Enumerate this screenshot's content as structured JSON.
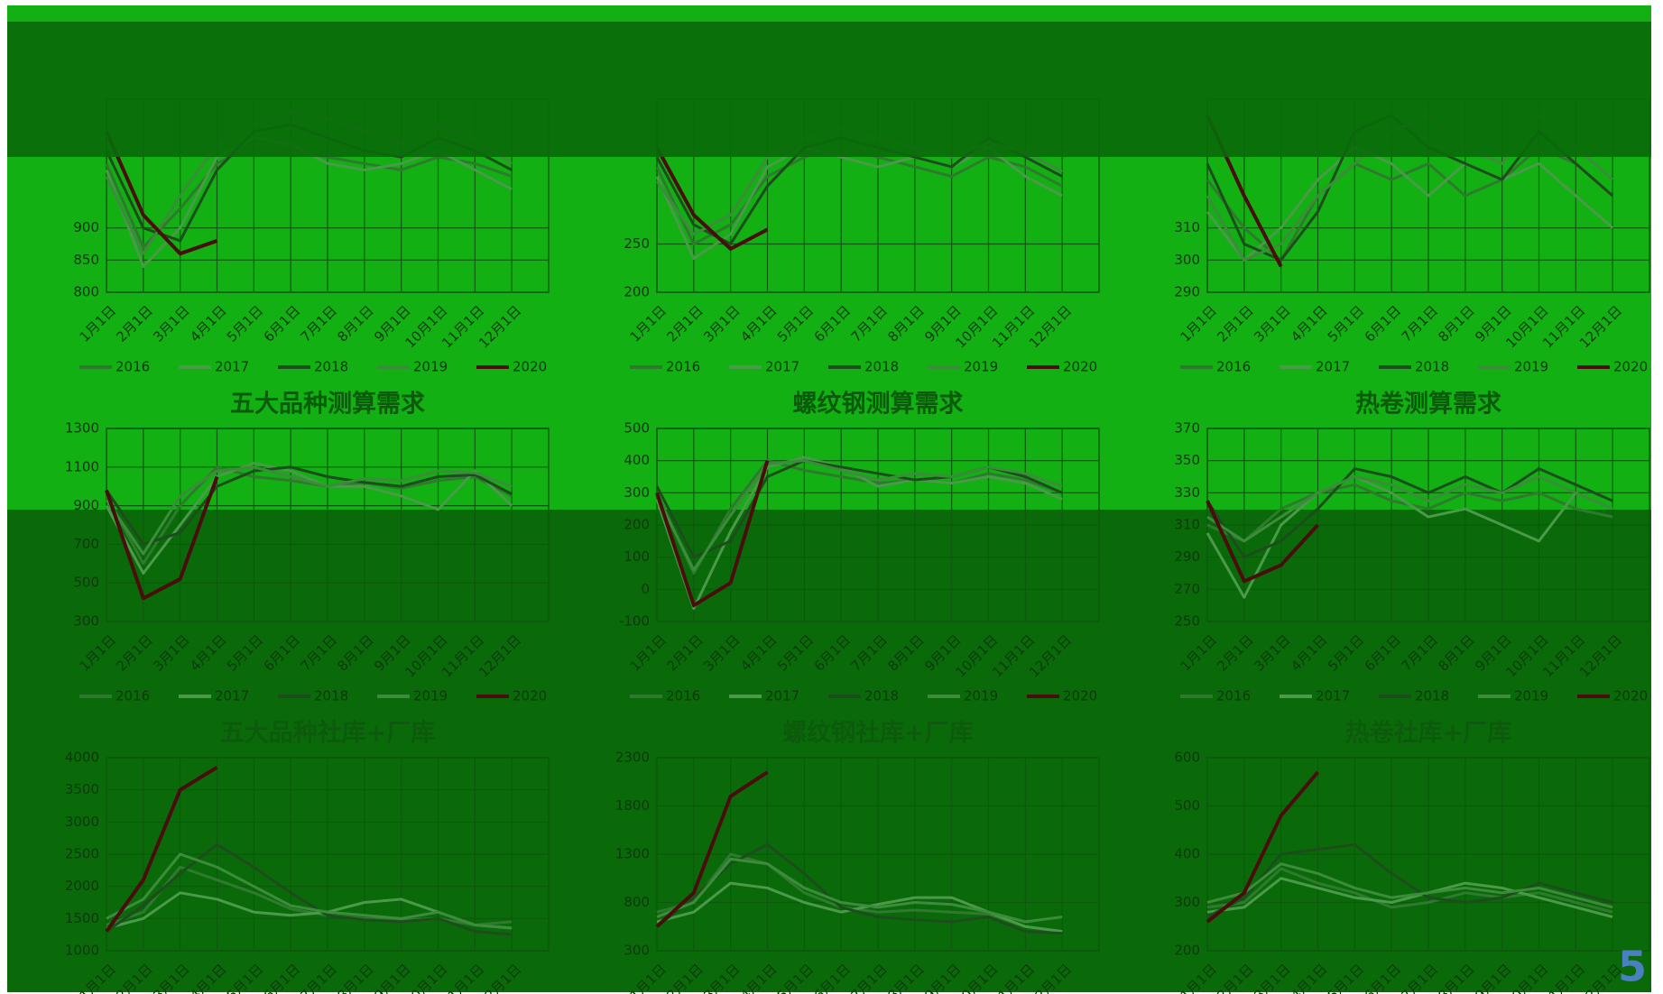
{
  "page_number": "5",
  "chart_data": [
    {
      "type": "line",
      "categories": [
        "1月1日",
        "2月1日",
        "3月1日",
        "4月1日",
        "5月1日",
        "6月1日",
        "7月1日",
        "8月1日",
        "9月1日",
        "10月1日",
        "11月1日",
        "12月1日"
      ],
      "ylim": [
        800,
        1100
      ],
      "yticks": [
        800,
        850,
        900
      ],
      "grid": true,
      "series": [
        {
          "name": "2016",
          "color": "#2f7a2f",
          "values": [
            1000,
            870,
            930,
            1000,
            1030,
            1020,
            1010,
            1000,
            990,
            1010,
            1000,
            980
          ]
        },
        {
          "name": "2017",
          "color": "#4a9a4a",
          "values": [
            990,
            840,
            900,
            1010,
            1040,
            1030,
            1000,
            990,
            1000,
            1020,
            990,
            960
          ]
        },
        {
          "name": "2018",
          "color": "#1d4d1d",
          "values": [
            1020,
            900,
            880,
            990,
            1050,
            1060,
            1040,
            1020,
            1010,
            1040,
            1020,
            990
          ]
        },
        {
          "name": "2019",
          "color": "#3c8c3c",
          "values": [
            980,
            860,
            950,
            1030,
            1060,
            1080,
            1070,
            1050,
            1030,
            1060,
            1040,
            1000
          ]
        },
        {
          "name": "2020",
          "color": "#4a0d0d",
          "values": [
            1050,
            920,
            860,
            880,
            null,
            null,
            null,
            null,
            null,
            null,
            null,
            null
          ]
        }
      ]
    },
    {
      "type": "line",
      "categories": [
        "1月1日",
        "2月1日",
        "3月1日",
        "4月1日",
        "5月1日",
        "6月1日",
        "7月1日",
        "8月1日",
        "9月1日",
        "10月1日",
        "11月1日",
        "12月1日"
      ],
      "ylim": [
        200,
        400
      ],
      "yticks": [
        200,
        250
      ],
      "grid": true,
      "series": [
        {
          "name": "2016",
          "color": "#2f7a2f",
          "values": [
            330,
            250,
            270,
            320,
            340,
            350,
            340,
            330,
            320,
            340,
            330,
            310
          ]
        },
        {
          "name": "2017",
          "color": "#4a9a4a",
          "values": [
            320,
            235,
            260,
            330,
            350,
            340,
            330,
            340,
            330,
            350,
            320,
            300
          ]
        },
        {
          "name": "2018",
          "color": "#1d4d1d",
          "values": [
            340,
            270,
            250,
            310,
            350,
            360,
            350,
            340,
            330,
            360,
            340,
            320
          ]
        },
        {
          "name": "2019",
          "color": "#3c8c3c",
          "values": [
            315,
            260,
            280,
            340,
            360,
            370,
            360,
            350,
            340,
            355,
            345,
            325
          ]
        },
        {
          "name": "2020",
          "color": "#4a0d0d",
          "values": [
            350,
            280,
            245,
            265,
            null,
            null,
            null,
            null,
            null,
            null,
            null,
            null
          ]
        }
      ]
    },
    {
      "type": "line",
      "categories": [
        "1月1日",
        "2月1日",
        "3月1日",
        "4月1日",
        "5月1日",
        "6月1日",
        "7月1日",
        "8月1日",
        "9月1日",
        "10月1日",
        "11月1日",
        "12月1日"
      ],
      "ylim": [
        290,
        350
      ],
      "yticks": [
        290,
        300,
        310
      ],
      "grid": true,
      "series": [
        {
          "name": "2016",
          "color": "#2f7a2f",
          "values": [
            325,
            310,
            300,
            320,
            330,
            325,
            330,
            320,
            325,
            335,
            330,
            320
          ]
        },
        {
          "name": "2017",
          "color": "#4a9a4a",
          "values": [
            315,
            300,
            310,
            325,
            335,
            330,
            320,
            330,
            325,
            330,
            320,
            310
          ]
        },
        {
          "name": "2018",
          "color": "#1d4d1d",
          "values": [
            330,
            305,
            300,
            315,
            340,
            345,
            335,
            330,
            325,
            340,
            330,
            320
          ]
        },
        {
          "name": "2019",
          "color": "#3c8c3c",
          "values": [
            320,
            300,
            305,
            320,
            330,
            340,
            345,
            335,
            330,
            345,
            335,
            325
          ]
        },
        {
          "name": "2020",
          "color": "#4a0d0d",
          "values": [
            345,
            320,
            298,
            null,
            null,
            null,
            null,
            null,
            null,
            null,
            null,
            null
          ]
        }
      ]
    },
    {
      "type": "line",
      "title": "五大品种测算需求",
      "categories": [
        "1月1日",
        "2月1日",
        "3月1日",
        "4月1日",
        "5月1日",
        "6月1日",
        "7月1日",
        "8月1日",
        "9月1日",
        "10月1日",
        "11月1日",
        "12月1日"
      ],
      "ylim": [
        300,
        1300
      ],
      "yticks": [
        300,
        500,
        700,
        900,
        1100,
        1300
      ],
      "grid": true,
      "series": [
        {
          "name": "2016",
          "color": "#2f7a2f",
          "values": [
            950,
            600,
            900,
            1100,
            1050,
            1030,
            1000,
            1020,
            990,
            1030,
            1050,
            950
          ]
        },
        {
          "name": "2017",
          "color": "#4a9a4a",
          "values": [
            900,
            550,
            800,
            1050,
            1120,
            1080,
            1000,
            1000,
            950,
            880,
            1080,
            900
          ]
        },
        {
          "name": "2018",
          "color": "#1d4d1d",
          "values": [
            980,
            700,
            760,
            1000,
            1080,
            1100,
            1050,
            1020,
            1000,
            1050,
            1060,
            960
          ]
        },
        {
          "name": "2019",
          "color": "#3c8c3c",
          "values": [
            930,
            650,
            950,
            1080,
            1100,
            1050,
            1000,
            1040,
            1030,
            1080,
            1070,
            1000
          ]
        },
        {
          "name": "2020",
          "color": "#4a0d0d",
          "values": [
            980,
            420,
            520,
            1050,
            null,
            null,
            null,
            null,
            null,
            null,
            null,
            null
          ]
        }
      ]
    },
    {
      "type": "line",
      "title": "螺纹钢测算需求",
      "categories": [
        "1月1日",
        "2月1日",
        "3月1日",
        "4月1日",
        "5月1日",
        "6月1日",
        "7月1日",
        "8月1日",
        "9月1日",
        "10月1日",
        "11月1日",
        "12月1日"
      ],
      "ylim": [
        -100,
        500
      ],
      "yticks": [
        -100,
        0,
        100,
        200,
        300,
        400,
        500
      ],
      "grid": true,
      "series": [
        {
          "name": "2016",
          "color": "#2f7a2f",
          "values": [
            300,
            50,
            250,
            400,
            370,
            350,
            330,
            340,
            330,
            360,
            340,
            300
          ]
        },
        {
          "name": "2017",
          "color": "#4a9a4a",
          "values": [
            280,
            -60,
            180,
            380,
            410,
            380,
            320,
            340,
            330,
            350,
            330,
            280
          ]
        },
        {
          "name": "2018",
          "color": "#1d4d1d",
          "values": [
            320,
            100,
            150,
            350,
            400,
            380,
            360,
            340,
            350,
            380,
            350,
            300
          ]
        },
        {
          "name": "2019",
          "color": "#3c8c3c",
          "values": [
            290,
            60,
            230,
            390,
            400,
            370,
            340,
            360,
            350,
            380,
            360,
            320
          ]
        },
        {
          "name": "2020",
          "color": "#4a0d0d",
          "values": [
            300,
            -50,
            20,
            400,
            null,
            null,
            null,
            null,
            null,
            null,
            null,
            null
          ]
        }
      ]
    },
    {
      "type": "line",
      "title": "热卷测算需求",
      "categories": [
        "1月1日",
        "2月1日",
        "3月1日",
        "4月1日",
        "5月1日",
        "6月1日",
        "7月1日",
        "8月1日",
        "9月1日",
        "10月1日",
        "11月1日",
        "12月1日"
      ],
      "ylim": [
        250,
        370
      ],
      "yticks": [
        250,
        270,
        290,
        310,
        330,
        350,
        370
      ],
      "grid": true,
      "series": [
        {
          "name": "2016",
          "color": "#2f7a2f",
          "values": [
            310,
            300,
            320,
            330,
            335,
            325,
            320,
            330,
            325,
            330,
            320,
            315
          ]
        },
        {
          "name": "2017",
          "color": "#4a9a4a",
          "values": [
            305,
            265,
            310,
            330,
            340,
            330,
            315,
            320,
            310,
            300,
            330,
            320
          ]
        },
        {
          "name": "2018",
          "color": "#1d4d1d",
          "values": [
            325,
            290,
            300,
            320,
            345,
            340,
            330,
            340,
            330,
            345,
            335,
            325
          ]
        },
        {
          "name": "2019",
          "color": "#3c8c3c",
          "values": [
            315,
            300,
            315,
            330,
            340,
            335,
            325,
            335,
            330,
            340,
            330,
            320
          ]
        },
        {
          "name": "2020",
          "color": "#4a0d0d",
          "values": [
            325,
            275,
            285,
            310,
            null,
            null,
            null,
            null,
            null,
            null,
            null,
            null
          ]
        }
      ]
    },
    {
      "type": "line",
      "title": "五大品种社库+厂库",
      "categories": [
        "1月1日",
        "2月1日",
        "3月1日",
        "4月1日",
        "5月1日",
        "6月1日",
        "7月1日",
        "8月1日",
        "9月1日",
        "10月1日",
        "11月1日",
        "12月1日"
      ],
      "ylim": [
        1000,
        4000
      ],
      "yticks": [
        1000,
        1500,
        2000,
        2500,
        3000,
        3500,
        4000
      ],
      "grid": true,
      "series": [
        {
          "name": "2016",
          "color": "#2f7a2f",
          "values": [
            1400,
            1600,
            2300,
            2100,
            1900,
            1650,
            1550,
            1500,
            1480,
            1500,
            1400,
            1450
          ]
        },
        {
          "name": "2017",
          "color": "#4a9a4a",
          "values": [
            1350,
            1500,
            1900,
            1800,
            1600,
            1550,
            1600,
            1750,
            1800,
            1600,
            1400,
            1350
          ]
        },
        {
          "name": "2018",
          "color": "#1d4d1d",
          "values": [
            1300,
            1700,
            2200,
            2650,
            2300,
            1900,
            1550,
            1480,
            1450,
            1500,
            1300,
            1250
          ]
        },
        {
          "name": "2019",
          "color": "#3c8c3c",
          "values": [
            1500,
            1800,
            2500,
            2300,
            2000,
            1700,
            1600,
            1550,
            1500,
            1600,
            1400,
            1350
          ]
        },
        {
          "name": "2020",
          "color": "#4a0d0d",
          "values": [
            1300,
            2100,
            3500,
            3850,
            null,
            null,
            null,
            null,
            null,
            null,
            null,
            null
          ]
        }
      ]
    },
    {
      "type": "line",
      "title": "螺纹钢社库+厂库",
      "categories": [
        "1月1日",
        "2月1日",
        "3月1日",
        "4月1日",
        "5月1日",
        "6月1日",
        "7月1日",
        "8月1日",
        "9月1日",
        "10月1日",
        "11月1日",
        "12月1日"
      ],
      "ylim": [
        300,
        2300
      ],
      "yticks": [
        300,
        800,
        1300,
        1800,
        2300
      ],
      "grid": true,
      "series": [
        {
          "name": "2016",
          "color": "#2f7a2f",
          "values": [
            700,
            800,
            1300,
            1200,
            900,
            750,
            700,
            720,
            700,
            680,
            550,
            500
          ]
        },
        {
          "name": "2017",
          "color": "#4a9a4a",
          "values": [
            600,
            700,
            1000,
            950,
            800,
            700,
            780,
            850,
            850,
            700,
            550,
            500
          ]
        },
        {
          "name": "2018",
          "color": "#1d4d1d",
          "values": [
            550,
            850,
            1200,
            1400,
            1100,
            750,
            650,
            620,
            600,
            650,
            500,
            480
          ]
        },
        {
          "name": "2019",
          "color": "#3c8c3c",
          "values": [
            650,
            800,
            1250,
            1200,
            950,
            800,
            750,
            800,
            780,
            700,
            600,
            650
          ]
        },
        {
          "name": "2020",
          "color": "#4a0d0d",
          "values": [
            550,
            900,
            1900,
            2150,
            null,
            null,
            null,
            null,
            null,
            null,
            null,
            null
          ]
        }
      ]
    },
    {
      "type": "line",
      "title": "热卷社库+厂库",
      "categories": [
        "1月1日",
        "2月1日",
        "3月1日",
        "4月1日",
        "5月1日",
        "6月1日",
        "7月1日",
        "8月1日",
        "9月1日",
        "10月1日",
        "11月1日",
        "12月1日"
      ],
      "ylim": [
        200,
        600
      ],
      "yticks": [
        200,
        300,
        400,
        500,
        600
      ],
      "grid": true,
      "series": [
        {
          "name": "2016",
          "color": "#2f7a2f",
          "values": [
            290,
            300,
            370,
            340,
            320,
            290,
            300,
            320,
            310,
            320,
            300,
            280
          ]
        },
        {
          "name": "2017",
          "color": "#4a9a4a",
          "values": [
            280,
            290,
            350,
            330,
            310,
            300,
            320,
            340,
            330,
            310,
            290,
            270
          ]
        },
        {
          "name": "2018",
          "color": "#1d4d1d",
          "values": [
            270,
            310,
            400,
            410,
            420,
            360,
            310,
            300,
            310,
            340,
            320,
            300
          ]
        },
        {
          "name": "2019",
          "color": "#3c8c3c",
          "values": [
            300,
            320,
            380,
            360,
            330,
            310,
            320,
            330,
            320,
            330,
            310,
            290
          ]
        },
        {
          "name": "2020",
          "color": "#4a0d0d",
          "values": [
            260,
            320,
            480,
            570,
            null,
            null,
            null,
            null,
            null,
            null,
            null,
            null
          ]
        }
      ]
    }
  ]
}
